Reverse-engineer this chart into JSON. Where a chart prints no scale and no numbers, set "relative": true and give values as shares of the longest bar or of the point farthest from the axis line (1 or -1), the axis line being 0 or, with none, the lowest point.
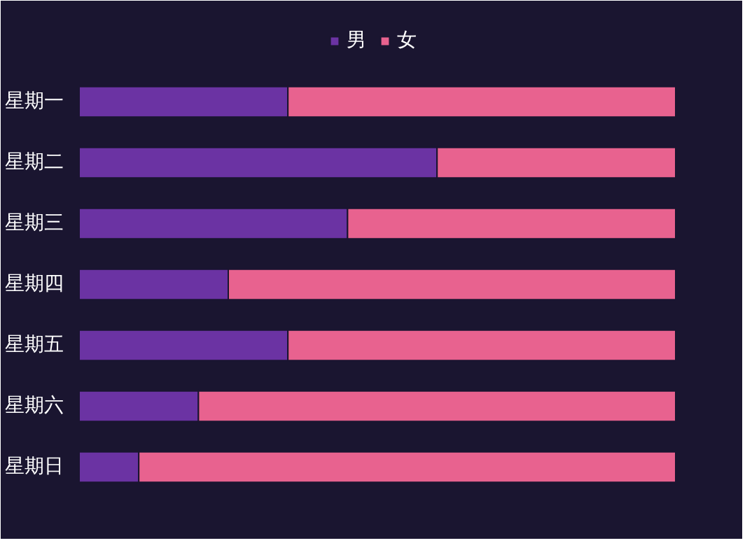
{
  "chart_data": {
    "type": "bar",
    "orientation": "horizontal",
    "stacked": true,
    "relative": true,
    "legend": "top",
    "grid": false,
    "categories": [
      "星期一",
      "星期二",
      "星期三",
      "星期四",
      "星期五",
      "星期六",
      "星期日"
    ],
    "series": [
      {
        "name": "男",
        "color": "#6b33a3",
        "values": [
          0.35,
          0.6,
          0.45,
          0.25,
          0.35,
          0.2,
          0.1
        ]
      },
      {
        "name": "女",
        "color": "#e8628f",
        "values": [
          0.65,
          0.4,
          0.55,
          0.75,
          0.65,
          0.8,
          0.9
        ]
      }
    ]
  }
}
